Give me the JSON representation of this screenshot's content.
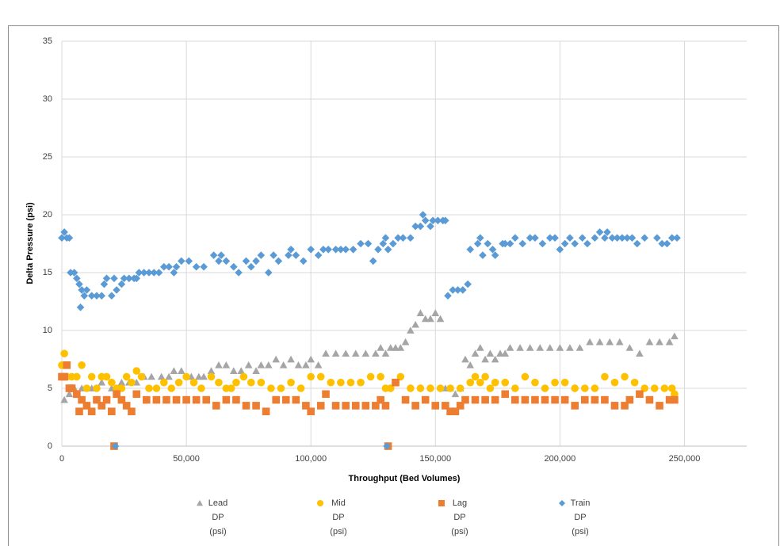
{
  "chart_data": {
    "type": "scatter",
    "x_label": "Throughput (Bed Volumes)",
    "y_label": "Delta Pressure (psi)",
    "xlim": [
      0,
      275000
    ],
    "xticks": [
      0,
      {
        "value": 50000,
        "label": "50,000"
      },
      {
        "value": 100000,
        "label": "100,000"
      },
      {
        "value": 150000,
        "label": "150,000"
      },
      {
        "value": 200000,
        "label": "200,000"
      },
      {
        "value": 250000,
        "label": "250,000"
      }
    ],
    "ylim": [
      0,
      35
    ],
    "yticks": [
      0,
      5,
      10,
      15,
      20,
      25,
      30,
      35
    ],
    "grid": true,
    "legend": "bottom",
    "series": [
      {
        "name": "Lead DP (psi)",
        "color": "#a5a5a5",
        "marker": "triangle",
        "x": [
          1000,
          2000,
          3000,
          5000,
          8000,
          12000,
          16000,
          20000,
          24000,
          27000,
          30000,
          33000,
          36000,
          40000,
          43000,
          45000,
          48000,
          52000,
          55000,
          57000,
          60000,
          63000,
          66000,
          69000,
          72000,
          75000,
          78000,
          80000,
          83000,
          86000,
          89000,
          92000,
          95000,
          98000,
          100000,
          103000,
          106000,
          110000,
          114000,
          118000,
          122000,
          126000,
          128000,
          130000,
          132000,
          134000,
          136000,
          138000,
          140000,
          142000,
          144000,
          146000,
          148000,
          150000,
          152000,
          154000,
          156000,
          158000,
          160000,
          162000,
          164000,
          166000,
          168000,
          170000,
          172000,
          174000,
          176000,
          178000,
          180000,
          184000,
          188000,
          192000,
          196000,
          200000,
          204000,
          208000,
          212000,
          216000,
          220000,
          224000,
          228000,
          232000,
          236000,
          240000,
          244000,
          246000
        ],
        "values": [
          4,
          6,
          4.5,
          5,
          5,
          5,
          5.5,
          5,
          5.5,
          5.5,
          5.5,
          6,
          6,
          6,
          6,
          6.5,
          6.5,
          6,
          6,
          6,
          6.5,
          7,
          7,
          6.5,
          6.5,
          7,
          6.5,
          7,
          7,
          7.5,
          7,
          7.5,
          7,
          7,
          7.5,
          7,
          8,
          8,
          8,
          8,
          8,
          8,
          8.5,
          8,
          8.5,
          8.5,
          8.5,
          9,
          10,
          10.5,
          11.5,
          11,
          11,
          11.5,
          11,
          5,
          5,
          4.5,
          5,
          7.5,
          7,
          8,
          8.5,
          7.5,
          8,
          7.5,
          8,
          8,
          8.5,
          8.5,
          8.5,
          8.5,
          8.5,
          8.5,
          8.5,
          8.5,
          9,
          9,
          9,
          9,
          8.5,
          8,
          9,
          9,
          9,
          9.5
        ]
      },
      {
        "name": "Mid DP (psi)",
        "color": "#ffc000",
        "marker": "circle",
        "x": [
          0,
          1000,
          2000,
          4000,
          6000,
          8000,
          10000,
          12000,
          14000,
          16000,
          18000,
          20000,
          22000,
          24000,
          26000,
          28000,
          30000,
          32000,
          35000,
          38000,
          41000,
          44000,
          47000,
          50000,
          53000,
          56000,
          60000,
          63000,
          66000,
          68000,
          70000,
          73000,
          76000,
          80000,
          84000,
          88000,
          92000,
          96000,
          100000,
          104000,
          108000,
          112000,
          116000,
          120000,
          124000,
          128000,
          130000,
          132000,
          134000,
          136000,
          140000,
          144000,
          148000,
          152000,
          156000,
          160000,
          164000,
          166000,
          168000,
          170000,
          172000,
          174000,
          178000,
          182000,
          186000,
          190000,
          194000,
          198000,
          202000,
          206000,
          210000,
          214000,
          218000,
          222000,
          226000,
          230000,
          234000,
          238000,
          242000,
          245000,
          246000
        ],
        "values": [
          7,
          8,
          6,
          6,
          6,
          7,
          5,
          6,
          5,
          6,
          6,
          5.5,
          5,
          5,
          6,
          5.5,
          6.5,
          6,
          5,
          5,
          5.5,
          5,
          5.5,
          6,
          5.5,
          5,
          6,
          5.5,
          5,
          5,
          5.5,
          6,
          5.5,
          5.5,
          5,
          5,
          5.5,
          5,
          6,
          6,
          5.5,
          5.5,
          5.5,
          5.5,
          6,
          6,
          5,
          5,
          5.5,
          6,
          5,
          5,
          5,
          5,
          5,
          5,
          5.5,
          6,
          5.5,
          6,
          5,
          5.5,
          5.5,
          5,
          6,
          5.5,
          5,
          5.5,
          5.5,
          5,
          5,
          5,
          6,
          5.5,
          6,
          5.5,
          5,
          5,
          5,
          5,
          4.5
        ]
      },
      {
        "name": "Lag DP (psi)",
        "color": "#ed7d31",
        "marker": "square",
        "x": [
          0,
          1000,
          2000,
          3000,
          4000,
          6000,
          7000,
          8000,
          10000,
          12000,
          14000,
          16000,
          18000,
          20000,
          21000,
          22000,
          24000,
          26000,
          28000,
          30000,
          34000,
          38000,
          42000,
          46000,
          50000,
          54000,
          58000,
          62000,
          66000,
          70000,
          74000,
          78000,
          82000,
          86000,
          90000,
          94000,
          98000,
          100000,
          104000,
          106000,
          110000,
          114000,
          118000,
          122000,
          126000,
          128000,
          130000,
          131000,
          134000,
          138000,
          142000,
          146000,
          150000,
          154000,
          156000,
          158000,
          160000,
          162000,
          166000,
          170000,
          174000,
          178000,
          182000,
          186000,
          190000,
          194000,
          198000,
          202000,
          206000,
          210000,
          214000,
          218000,
          222000,
          226000,
          228000,
          232000,
          236000,
          240000,
          244000,
          246000
        ],
        "values": [
          6,
          6,
          7,
          5,
          5,
          4.5,
          3,
          4,
          3.5,
          3,
          4,
          3.5,
          4,
          3,
          0,
          4.5,
          4,
          3.5,
          3,
          4.5,
          4,
          4,
          4,
          4,
          4,
          4,
          4,
          3.5,
          4,
          4,
          3.5,
          3.5,
          3,
          4,
          4,
          4,
          3.5,
          3,
          3.5,
          4.5,
          3.5,
          3.5,
          3.5,
          3.5,
          3.5,
          4,
          3.5,
          0,
          5.5,
          4,
          3.5,
          4,
          3.5,
          3.5,
          3,
          3,
          3.5,
          4,
          4,
          4,
          4,
          4.5,
          4,
          4,
          4,
          4,
          4,
          4,
          3.5,
          4,
          4,
          4,
          3.5,
          3.5,
          4,
          4.5,
          4,
          3.5,
          4,
          4
        ]
      },
      {
        "name": "Train DP (psi)",
        "color": "#5b9bd5",
        "marker": "diamond",
        "x": [
          0,
          1000,
          2000,
          3000,
          3500,
          5000,
          6000,
          7000,
          7500,
          8000,
          9000,
          10000,
          12000,
          14000,
          16000,
          17000,
          18000,
          20000,
          21000,
          21500,
          22000,
          24000,
          25000,
          27000,
          29000,
          30000,
          31000,
          33000,
          35000,
          37000,
          39000,
          41000,
          43000,
          45000,
          46000,
          48000,
          51000,
          54000,
          57000,
          61000,
          63000,
          64000,
          66000,
          69000,
          71000,
          74000,
          76000,
          78000,
          80000,
          83000,
          85000,
          87000,
          91000,
          92000,
          94000,
          97000,
          100000,
          103000,
          105000,
          107000,
          110000,
          112000,
          114000,
          117000,
          120000,
          123000,
          125000,
          127000,
          129000,
          130000,
          130500,
          131000,
          133000,
          135000,
          137000,
          140000,
          142000,
          144000,
          145000,
          146000,
          148000,
          149000,
          151000,
          153000,
          154000,
          155000,
          157000,
          159000,
          161000,
          163000,
          164000,
          167000,
          168000,
          169000,
          171000,
          173000,
          174000,
          177000,
          178000,
          180000,
          182000,
          185000,
          188000,
          190000,
          193000,
          196000,
          198000,
          200000,
          202000,
          204000,
          206000,
          209000,
          211000,
          214000,
          216000,
          218000,
          219000,
          221000,
          223000,
          225000,
          227000,
          229000,
          231000,
          234000,
          239000,
          241000,
          243000,
          245000,
          247000
        ],
        "values": [
          18,
          18.5,
          18,
          18,
          15,
          15,
          14.5,
          14,
          12,
          13.5,
          13,
          13.5,
          13,
          13,
          13,
          14,
          14.5,
          13,
          14.5,
          0,
          13.5,
          14,
          14.5,
          14.5,
          14.5,
          14.5,
          15,
          15,
          15,
          15,
          15,
          15.5,
          15.5,
          15,
          15.5,
          16,
          16,
          15.5,
          15.5,
          16.5,
          16,
          16.5,
          16,
          15.5,
          15,
          16,
          15.5,
          16,
          16.5,
          15,
          16.5,
          16,
          16.5,
          17,
          16.5,
          16,
          17,
          16.5,
          17,
          17,
          17,
          17,
          17,
          17,
          17.5,
          17.5,
          16,
          17,
          17.5,
          18,
          0,
          17,
          17.5,
          18,
          18,
          18,
          19,
          19,
          20,
          19.5,
          19,
          19.5,
          19.5,
          19.5,
          19.5,
          13,
          13.5,
          13.5,
          13.5,
          14,
          17,
          17.5,
          18,
          16.5,
          17.5,
          17,
          16.5,
          17.5,
          17.5,
          17.5,
          18,
          17.5,
          18,
          18,
          17.5,
          18,
          18,
          17,
          17.5,
          18,
          17.5,
          18,
          17.5,
          18,
          18.5,
          18,
          18.5,
          18,
          18,
          18,
          18,
          18,
          17.5,
          18,
          18,
          17.5,
          17.5,
          18,
          18
        ]
      }
    ]
  }
}
